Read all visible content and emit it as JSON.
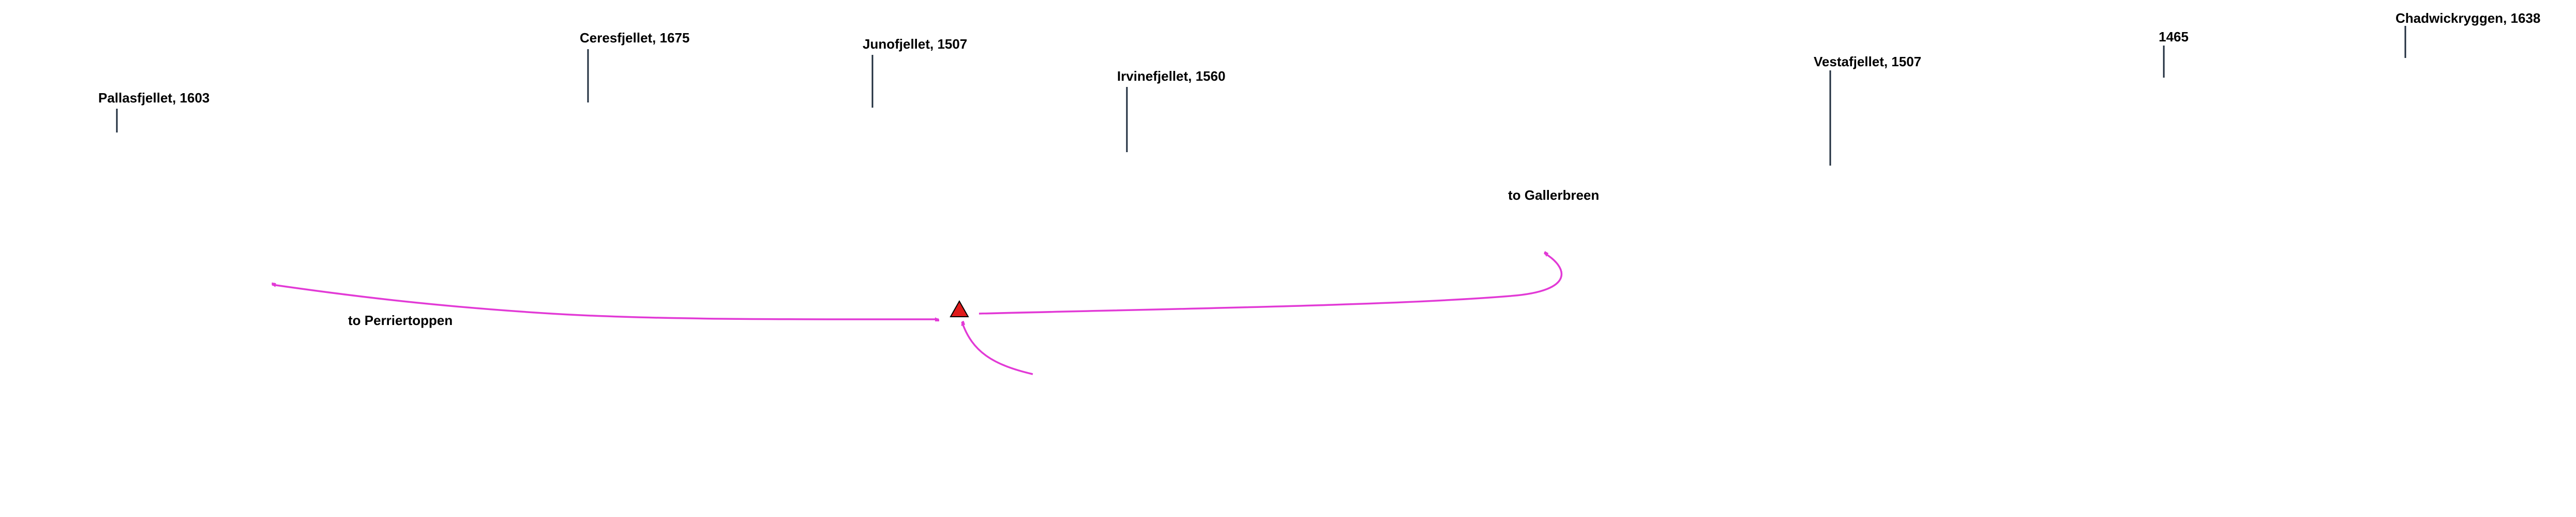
{
  "peaks": [
    {
      "label": "Pallasfjellet, 1603"
    },
    {
      "label": "Ceresfjellet, 1675"
    },
    {
      "label": "Junofjellet, 1507"
    },
    {
      "label": "Irvinefjellet, 1560"
    },
    {
      "label": "Vestafjellet, 1507"
    },
    {
      "label": "1465"
    },
    {
      "label": "Chadwickryggen, 1638"
    }
  ],
  "routes": [
    {
      "label": "to Perriertoppen"
    },
    {
      "label": "to Gallerbreen"
    }
  ]
}
